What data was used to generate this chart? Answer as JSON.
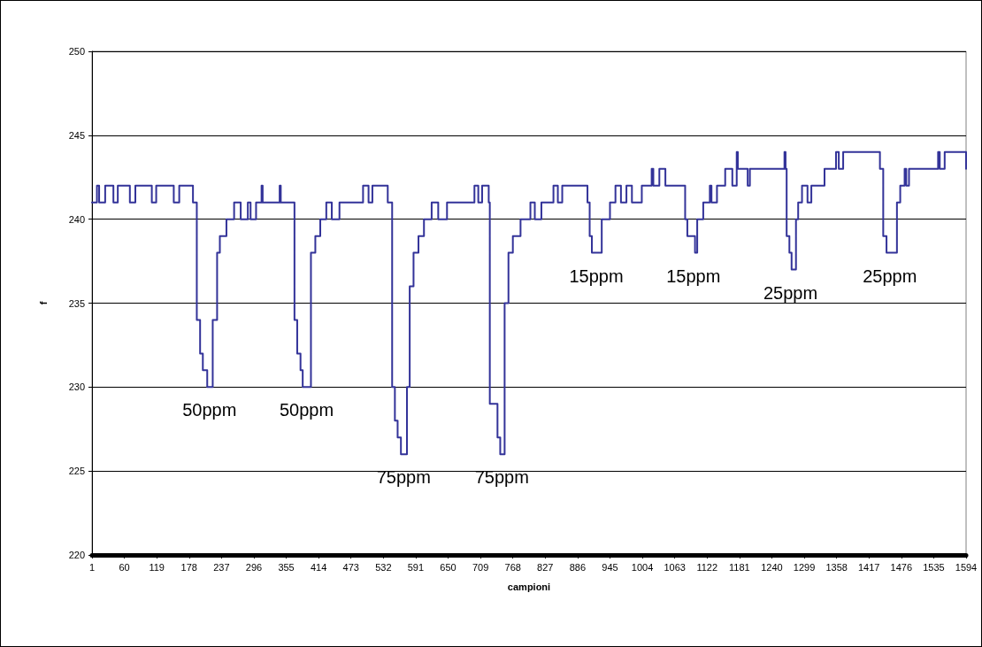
{
  "chart_data": {
    "type": "step",
    "xlabel": "campioni",
    "ylabel": "f",
    "xlim": [
      1,
      1594
    ],
    "xticks": [
      1,
      60,
      119,
      178,
      237,
      296,
      355,
      414,
      473,
      532,
      591,
      650,
      709,
      768,
      827,
      886,
      945,
      1004,
      1063,
      1122,
      1181,
      1240,
      1299,
      1358,
      1417,
      1476,
      1535,
      1594
    ],
    "ylim": [
      220,
      250
    ],
    "yticks": [
      220,
      225,
      230,
      235,
      240,
      245,
      250
    ],
    "grid": "y",
    "marker": "none",
    "line_style": "solid",
    "series": [
      {
        "color": "#333399",
        "x": [
          1,
          10,
          14,
          25,
          40,
          48,
          70,
          80,
          110,
          118,
          150,
          160,
          185,
          192,
          198,
          203,
          211,
          221,
          229,
          234,
          246,
          260,
          272,
          285,
          290,
          300,
          310,
          312,
          343,
          345,
          370,
          375,
          381,
          385,
          400,
          408,
          417,
          428,
          438,
          452,
          495,
          505,
          512,
          540,
          548,
          553,
          558,
          564,
          575,
          580,
          587,
          596,
          606,
          620,
          632,
          648,
          698,
          705,
          712,
          724,
          726,
          740,
          745,
          753,
          760,
          768,
          782,
          800,
          808,
          820,
          842,
          850,
          858,
          904,
          908,
          912,
          930,
          945,
          955,
          965,
          975,
          985,
          1003,
          1021,
          1024,
          1035,
          1046,
          1082,
          1086,
          1100,
          1104,
          1115,
          1127,
          1130,
          1140,
          1155,
          1168,
          1176,
          1178,
          1196,
          1200,
          1263,
          1265,
          1267,
          1272,
          1276,
          1284,
          1288,
          1295,
          1305,
          1312,
          1336,
          1357,
          1362,
          1370,
          1437,
          1443,
          1449,
          1468,
          1474,
          1482,
          1485,
          1490,
          1543,
          1546,
          1555,
          1594
        ],
        "values": [
          241,
          242,
          241,
          242,
          241,
          242,
          241,
          242,
          241,
          242,
          241,
          242,
          241,
          234,
          232,
          231,
          230,
          234,
          238,
          239,
          240,
          241,
          240,
          241,
          240,
          241,
          242,
          241,
          242,
          241,
          234,
          232,
          231,
          230,
          238,
          239,
          240,
          241,
          240,
          241,
          242,
          241,
          242,
          241,
          230,
          228,
          227,
          226,
          230,
          236,
          238,
          239,
          240,
          241,
          240,
          241,
          242,
          241,
          242,
          241,
          229,
          227,
          226,
          235,
          238,
          239,
          240,
          241,
          240,
          241,
          242,
          241,
          242,
          241,
          239,
          238,
          240,
          241,
          242,
          241,
          242,
          241,
          242,
          243,
          242,
          243,
          242,
          240,
          239,
          238,
          240,
          241,
          242,
          241,
          242,
          243,
          242,
          244,
          243,
          242,
          243,
          244,
          243,
          239,
          238,
          237,
          240,
          241,
          242,
          241,
          242,
          243,
          244,
          243,
          244,
          243,
          239,
          238,
          241,
          242,
          243,
          242,
          243,
          244,
          243,
          244,
          243
        ]
      }
    ],
    "annotations": [
      {
        "text": "50ppm",
        "x": 215,
        "y": 230
      },
      {
        "text": "50ppm",
        "x": 392,
        "y": 230
      },
      {
        "text": "75ppm",
        "x": 569,
        "y": 226
      },
      {
        "text": "75ppm",
        "x": 748,
        "y": 226
      },
      {
        "text": "15ppm",
        "x": 920,
        "y": 238
      },
      {
        "text": "15ppm",
        "x": 1097,
        "y": 238
      },
      {
        "text": "25ppm",
        "x": 1274,
        "y": 237
      },
      {
        "text": "25ppm",
        "x": 1455,
        "y": 238
      }
    ]
  }
}
